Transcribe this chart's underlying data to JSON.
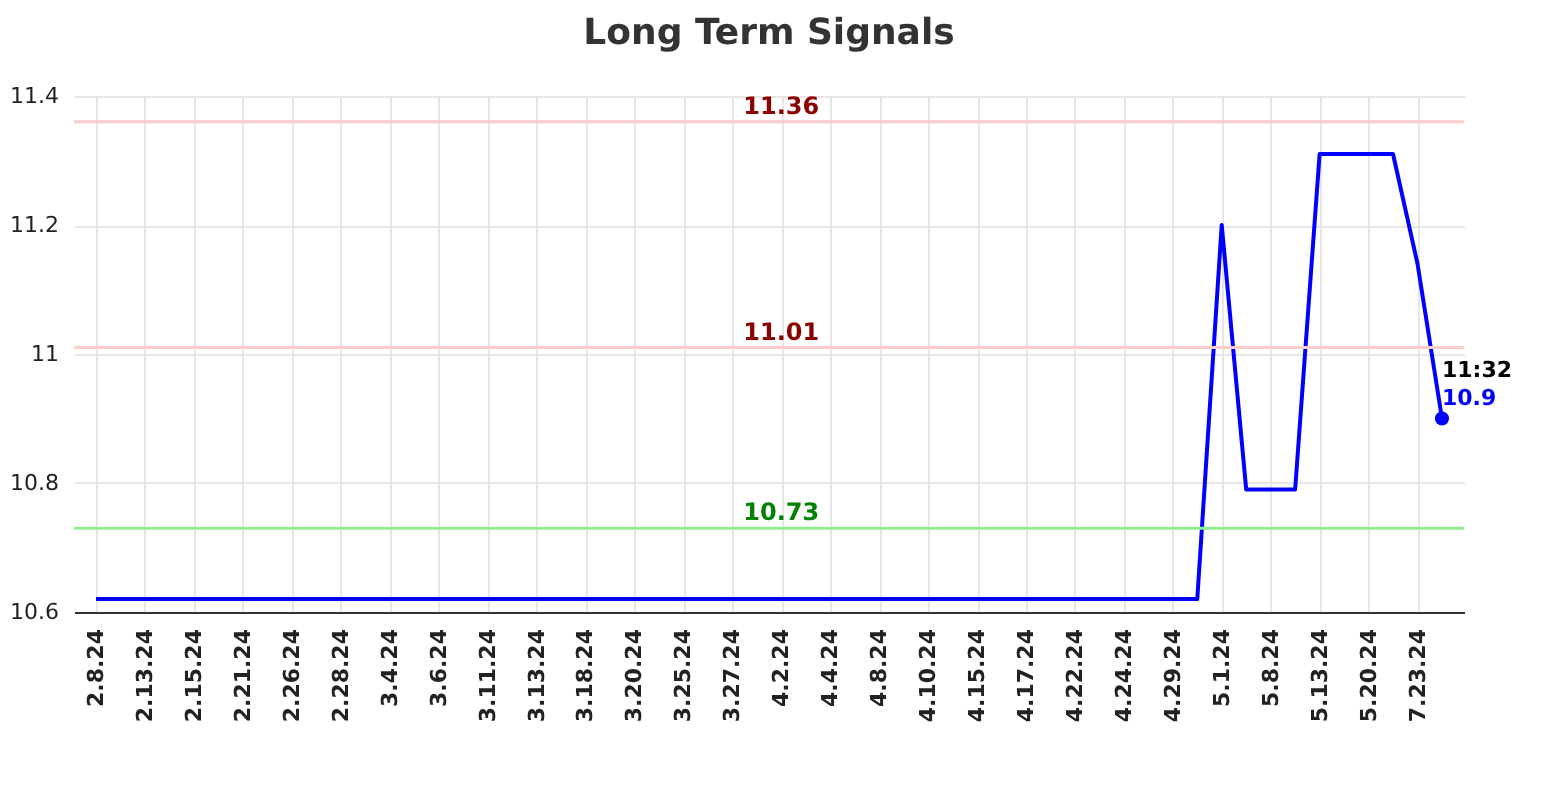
{
  "chart_data": {
    "type": "line",
    "title": "Long Term Signals",
    "categories": [
      "2.8.24",
      null,
      "2.13.24",
      null,
      "2.15.24",
      null,
      "2.21.24",
      null,
      "2.26.24",
      null,
      "2.28.24",
      null,
      "3.4.24",
      null,
      "3.6.24",
      null,
      "3.11.24",
      null,
      "3.13.24",
      null,
      "3.18.24",
      null,
      "3.20.24",
      null,
      "3.25.24",
      null,
      "3.27.24",
      null,
      "4.2.24",
      null,
      "4.4.24",
      null,
      "4.8.24",
      null,
      "4.10.24",
      null,
      "4.15.24",
      null,
      "4.17.24",
      null,
      "4.22.24",
      null,
      "4.24.24",
      null,
      "4.29.24",
      null,
      "5.1.24",
      null,
      "5.8.24",
      null,
      "5.13.24",
      null,
      "5.20.24",
      null,
      "7.23.24",
      null
    ],
    "series": [
      {
        "color": "#0000ff",
        "values": [
          10.62,
          10.62,
          10.62,
          10.62,
          10.62,
          10.62,
          10.62,
          10.62,
          10.62,
          10.62,
          10.62,
          10.62,
          10.62,
          10.62,
          10.62,
          10.62,
          10.62,
          10.62,
          10.62,
          10.62,
          10.62,
          10.62,
          10.62,
          10.62,
          10.62,
          10.62,
          10.62,
          10.62,
          10.62,
          10.62,
          10.62,
          10.62,
          10.62,
          10.62,
          10.62,
          10.62,
          10.62,
          10.62,
          10.62,
          10.62,
          10.62,
          10.62,
          10.62,
          10.62,
          10.62,
          10.62,
          11.2,
          10.79,
          10.79,
          10.79,
          11.31,
          11.31,
          11.31,
          11.31,
          11.14,
          10.9
        ]
      },
      {
        "type": "scatter",
        "color": "#0000ff",
        "values": [
          null,
          null,
          null,
          null,
          null,
          null,
          null,
          null,
          null,
          null,
          null,
          null,
          null,
          null,
          null,
          null,
          null,
          null,
          null,
          null,
          null,
          null,
          null,
          null,
          null,
          null,
          null,
          null,
          null,
          null,
          null,
          null,
          null,
          null,
          null,
          null,
          null,
          null,
          null,
          null,
          null,
          null,
          null,
          null,
          null,
          null,
          null,
          null,
          null,
          null,
          null,
          null,
          null,
          null,
          null,
          10.9
        ],
        "value_labels": [
          null,
          null,
          null,
          null,
          null,
          null,
          null,
          null,
          null,
          null,
          null,
          null,
          null,
          null,
          null,
          null,
          null,
          null,
          null,
          null,
          null,
          null,
          null,
          null,
          null,
          null,
          null,
          null,
          null,
          null,
          null,
          null,
          null,
          null,
          null,
          null,
          null,
          null,
          null,
          null,
          null,
          null,
          null,
          null,
          null,
          null,
          null,
          null,
          null,
          null,
          null,
          null,
          null,
          null,
          null,
          "10.9"
        ]
      }
    ],
    "annotations": [
      "11:32"
    ],
    "ylim": [
      10.6,
      11.4
    ],
    "yticks": [
      10.6,
      10.8,
      {
        "value": 11,
        "label": "11"
      },
      11.2,
      11.4
    ],
    "ref_lines": [
      {
        "axis": "y",
        "value": 11.36,
        "label": "11.36",
        "color": "#ffcccc"
      },
      {
        "axis": "y",
        "value": 11.01,
        "label": "11.01",
        "color": "#ffcccc"
      },
      {
        "axis": "y",
        "value": 10.73,
        "label": "10.73",
        "color": "#90ee90"
      }
    ],
    "grid": true,
    "line_style": "solid"
  }
}
